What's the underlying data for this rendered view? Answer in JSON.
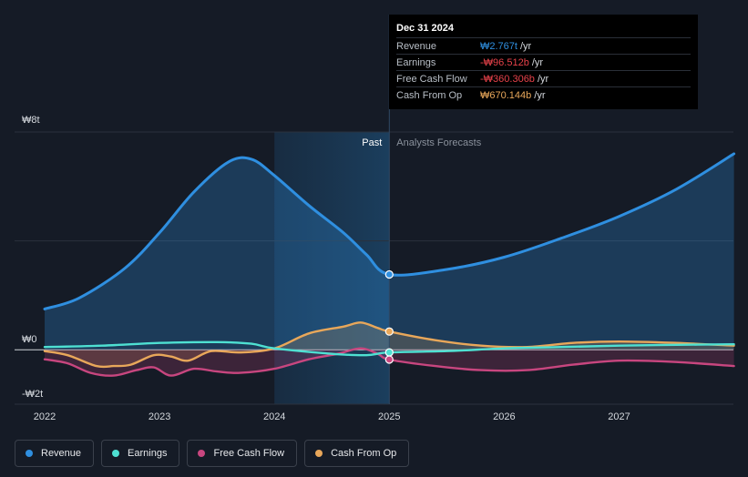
{
  "chart_data": {
    "type": "area",
    "x_range": [
      2021.8,
      2028.0
    ],
    "ylim": [
      -2,
      8
    ],
    "y_ticks": [
      {
        "value": 8,
        "label": "₩8t"
      },
      {
        "value": 0,
        "label": "₩0"
      },
      {
        "value": -2,
        "label": "-₩2t"
      }
    ],
    "x_ticks": [
      {
        "value": 2022,
        "label": "2022"
      },
      {
        "value": 2023,
        "label": "2023"
      },
      {
        "value": 2024,
        "label": "2024"
      },
      {
        "value": 2025,
        "label": "2025"
      },
      {
        "value": 2026,
        "label": "2026"
      },
      {
        "value": 2027,
        "label": "2027"
      }
    ],
    "divider_x": 2025,
    "past_band": [
      2024,
      2025
    ],
    "past_label": "Past",
    "forecast_label": "Analysts Forecasts",
    "series": [
      {
        "name": "Revenue",
        "color": "#2f8fe0",
        "fill": true,
        "points": [
          [
            2022.0,
            1.5
          ],
          [
            2022.3,
            1.9
          ],
          [
            2022.7,
            3.0
          ],
          [
            2023.0,
            4.3
          ],
          [
            2023.3,
            5.8
          ],
          [
            2023.6,
            6.9
          ],
          [
            2023.8,
            7.0
          ],
          [
            2024.0,
            6.4
          ],
          [
            2024.3,
            5.3
          ],
          [
            2024.6,
            4.3
          ],
          [
            2024.8,
            3.5
          ],
          [
            2025.0,
            2.767
          ],
          [
            2025.5,
            2.95
          ],
          [
            2026.0,
            3.4
          ],
          [
            2026.5,
            4.1
          ],
          [
            2027.0,
            4.9
          ],
          [
            2027.5,
            5.9
          ],
          [
            2028.0,
            7.2
          ]
        ]
      },
      {
        "name": "Earnings",
        "color": "#4ee0d2",
        "fill": false,
        "points": [
          [
            2022.0,
            0.1
          ],
          [
            2022.5,
            0.15
          ],
          [
            2023.0,
            0.25
          ],
          [
            2023.5,
            0.28
          ],
          [
            2023.8,
            0.22
          ],
          [
            2024.0,
            0.05
          ],
          [
            2024.5,
            -0.15
          ],
          [
            2024.8,
            -0.2
          ],
          [
            2025.0,
            -0.097
          ],
          [
            2025.5,
            -0.05
          ],
          [
            2026.0,
            0.05
          ],
          [
            2026.5,
            0.1
          ],
          [
            2027.0,
            0.15
          ],
          [
            2027.5,
            0.18
          ],
          [
            2028.0,
            0.2
          ]
        ]
      },
      {
        "name": "Free Cash Flow",
        "color": "#c8467f",
        "fill": true,
        "points": [
          [
            2022.0,
            -0.35
          ],
          [
            2022.2,
            -0.5
          ],
          [
            2022.4,
            -0.85
          ],
          [
            2022.6,
            -0.95
          ],
          [
            2022.8,
            -0.75
          ],
          [
            2022.95,
            -0.65
          ],
          [
            2023.1,
            -0.95
          ],
          [
            2023.3,
            -0.7
          ],
          [
            2023.5,
            -0.8
          ],
          [
            2023.7,
            -0.85
          ],
          [
            2024.0,
            -0.7
          ],
          [
            2024.3,
            -0.35
          ],
          [
            2024.55,
            -0.15
          ],
          [
            2024.75,
            0.05
          ],
          [
            2024.9,
            -0.15
          ],
          [
            2025.0,
            -0.36
          ],
          [
            2025.4,
            -0.6
          ],
          [
            2025.8,
            -0.75
          ],
          [
            2026.2,
            -0.75
          ],
          [
            2026.6,
            -0.55
          ],
          [
            2027.0,
            -0.4
          ],
          [
            2027.5,
            -0.45
          ],
          [
            2028.0,
            -0.6
          ]
        ]
      },
      {
        "name": "Cash From Op",
        "color": "#e8a75a",
        "fill": true,
        "points": [
          [
            2022.0,
            -0.05
          ],
          [
            2022.2,
            -0.2
          ],
          [
            2022.45,
            -0.6
          ],
          [
            2022.6,
            -0.6
          ],
          [
            2022.75,
            -0.55
          ],
          [
            2022.95,
            -0.2
          ],
          [
            2023.1,
            -0.25
          ],
          [
            2023.25,
            -0.4
          ],
          [
            2023.45,
            -0.05
          ],
          [
            2023.7,
            -0.1
          ],
          [
            2024.0,
            0.05
          ],
          [
            2024.3,
            0.6
          ],
          [
            2024.6,
            0.85
          ],
          [
            2024.75,
            1.0
          ],
          [
            2024.9,
            0.8
          ],
          [
            2025.0,
            0.67
          ],
          [
            2025.4,
            0.35
          ],
          [
            2025.8,
            0.15
          ],
          [
            2026.2,
            0.1
          ],
          [
            2026.6,
            0.25
          ],
          [
            2027.0,
            0.3
          ],
          [
            2027.5,
            0.25
          ],
          [
            2028.0,
            0.15
          ]
        ]
      }
    ],
    "highlight_x": 2025,
    "highlight_values": {
      "Revenue": 2.767,
      "Earnings": -0.097,
      "Free Cash Flow": -0.36,
      "Cash From Op": 0.67
    }
  },
  "tooltip": {
    "date": "Dec 31 2024",
    "rows": [
      {
        "label": "Revenue",
        "value": "₩2.767t",
        "unit": "/yr",
        "color": "#2f8fe0"
      },
      {
        "label": "Earnings",
        "value": "-₩96.512b",
        "unit": "/yr",
        "color": "#e8424a"
      },
      {
        "label": "Free Cash Flow",
        "value": "-₩360.306b",
        "unit": "/yr",
        "color": "#e8424a"
      },
      {
        "label": "Cash From Op",
        "value": "₩670.144b",
        "unit": "/yr",
        "color": "#e8a75a"
      }
    ]
  },
  "legend": [
    {
      "label": "Revenue",
      "color": "#2f8fe0"
    },
    {
      "label": "Earnings",
      "color": "#4ee0d2"
    },
    {
      "label": "Free Cash Flow",
      "color": "#c8467f"
    },
    {
      "label": "Cash From Op",
      "color": "#e8a75a"
    }
  ]
}
